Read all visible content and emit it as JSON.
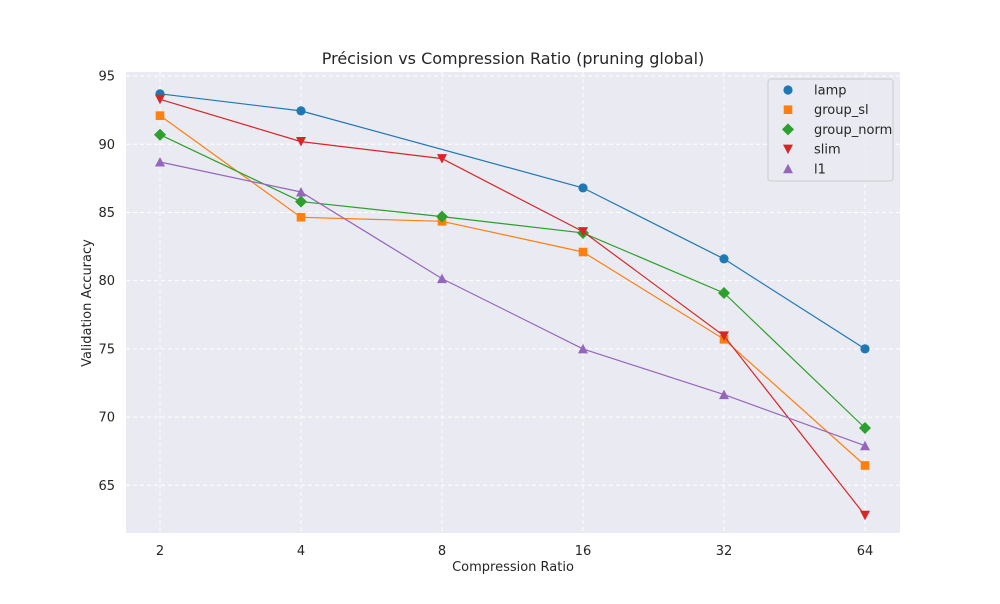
{
  "chart_data": {
    "type": "line",
    "title": "Précision vs Compression Ratio (pruning global)",
    "xlabel": "Compression Ratio",
    "ylabel": "Validation Accuracy",
    "x_scale": "log2",
    "x": [
      2,
      4,
      8,
      16,
      32,
      64
    ],
    "xticks": [
      "2",
      "4",
      "8",
      "16",
      "32",
      "64"
    ],
    "ylim": [
      61.5,
      95.3
    ],
    "yticks": [
      65,
      70,
      75,
      80,
      85,
      90,
      95
    ],
    "grid": true,
    "legend_position": "top-right",
    "series": [
      {
        "name": "lamp",
        "color": "#1f77b4",
        "marker": "circle",
        "values": [
          93.7,
          92.45,
          null,
          86.8,
          81.6,
          75.0
        ]
      },
      {
        "name": "group_sl",
        "color": "#ff7f0e",
        "marker": "square",
        "values": [
          92.1,
          84.65,
          84.35,
          82.1,
          75.7,
          66.45
        ]
      },
      {
        "name": "group_norm",
        "color": "#2ca02c",
        "marker": "diamond",
        "values": [
          90.7,
          85.8,
          84.7,
          83.5,
          79.1,
          69.2
        ]
      },
      {
        "name": "slim",
        "color": "#d62728",
        "marker": "triangle-down",
        "values": [
          93.3,
          90.2,
          88.95,
          83.6,
          75.95,
          62.8
        ]
      },
      {
        "name": "l1",
        "color": "#9467bd",
        "marker": "triangle-up",
        "values": [
          88.7,
          86.5,
          80.15,
          75.0,
          71.65,
          67.9
        ]
      }
    ]
  }
}
